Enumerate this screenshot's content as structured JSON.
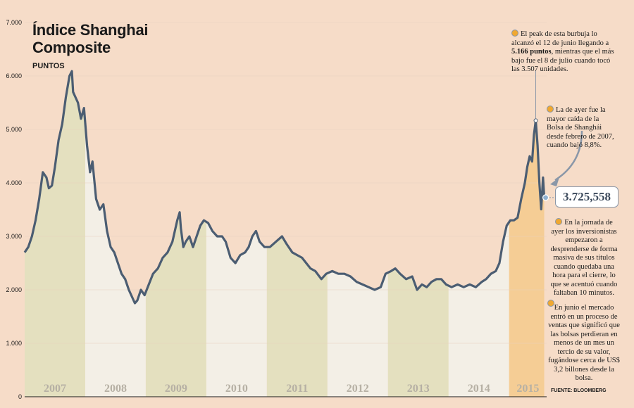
{
  "title_line1": "Índice Shanghai",
  "title_line2": "Composite",
  "units": "PUNTOS",
  "current_value": "3.725,558",
  "notes": {
    "peak": {
      "pre": "El peak de esta burbuja lo alcanzó el 12 de junio llegando a ",
      "bold": "5.166 puntos",
      "post": ", mientras que el más bajo fue el 8 de julio cuando tocó las 3.507 unidades."
    },
    "drop": "La de ayer fue la mayor caída de la Bolsa de Shanghái desde febrero de 2007, cuando bajó 8,8%.",
    "sell": "En la jornada de ayer los inversionistas empezaron a desprenderse de forma masiva de sus títulos cuando quedaba una hora para el cierre, lo que se acentuó cuando faltaban 10 minutos.",
    "june": "En junio el mercado entró en un proceso de ventas que significó que las bolsas perdieran en menos de un mes un tercio de su valor, fugándose cerca de US$ 3,2 billones desde la bolsa."
  },
  "source": "FUENTE: BLOOMBERG",
  "colors": {
    "background": "#f6dcc8",
    "band_olive": "#e4e0bf",
    "band_light": "#f3efe6",
    "band_2015": "#f5cd95",
    "line": "#4b5d72",
    "accent": "#f0a830"
  },
  "chart_data": {
    "type": "line",
    "title": "Índice Shanghai Composite",
    "ylabel": "PUNTOS",
    "ylim": [
      0,
      7000
    ],
    "yticks": [
      "0",
      "1.000",
      "2.000",
      "3.000",
      "4.000",
      "5.000",
      "6.000",
      "7.000"
    ],
    "categories": [
      "2007",
      "2008",
      "2009",
      "2010",
      "2011",
      "2012",
      "2013",
      "2014",
      "2015"
    ],
    "xlim": [
      2007.0,
      2015.62
    ],
    "series": [
      {
        "x": [
          2007.0,
          2007.06,
          2007.12,
          2007.18,
          2007.24,
          2007.3,
          2007.36,
          2007.4,
          2007.45,
          2007.5,
          2007.56,
          2007.62,
          2007.68,
          2007.74,
          2007.78,
          2007.8,
          2007.84,
          2007.88,
          2007.93,
          2007.98,
          2008.03,
          2008.08,
          2008.12,
          2008.18,
          2008.24,
          2008.3,
          2008.36,
          2008.42,
          2008.48,
          2008.54,
          2008.6,
          2008.66,
          2008.72,
          2008.78,
          2008.82,
          2008.86,
          2008.92,
          2008.98,
          2009.05,
          2009.12,
          2009.2,
          2009.28,
          2009.36,
          2009.44,
          2009.52,
          2009.56,
          2009.58,
          2009.62,
          2009.66,
          2009.72,
          2009.78,
          2009.84,
          2009.9,
          2009.96,
          2010.03,
          2010.1,
          2010.18,
          2010.26,
          2010.32,
          2010.4,
          2010.48,
          2010.56,
          2010.64,
          2010.7,
          2010.76,
          2010.82,
          2010.88,
          2010.96,
          2011.05,
          2011.15,
          2011.25,
          2011.33,
          2011.42,
          2011.5,
          2011.58,
          2011.65,
          2011.72,
          2011.8,
          2011.9,
          2011.98,
          2012.08,
          2012.18,
          2012.28,
          2012.38,
          2012.48,
          2012.58,
          2012.68,
          2012.78,
          2012.88,
          2012.96,
          2013.05,
          2013.12,
          2013.2,
          2013.3,
          2013.4,
          2013.48,
          2013.56,
          2013.64,
          2013.72,
          2013.8,
          2013.88,
          2013.96,
          2014.05,
          2014.15,
          2014.25,
          2014.35,
          2014.45,
          2014.55,
          2014.62,
          2014.7,
          2014.78,
          2014.84,
          2014.9,
          2014.96,
          2015.02,
          2015.08,
          2015.14,
          2015.2,
          2015.26,
          2015.3,
          2015.34,
          2015.38,
          2015.41,
          2015.44,
          2015.47,
          2015.5,
          2015.53,
          2015.56,
          2015.58
        ],
        "y": [
          2700,
          2800,
          3000,
          3300,
          3700,
          4200,
          4100,
          3900,
          3950,
          4300,
          4800,
          5100,
          5600,
          6000,
          6090,
          5700,
          5600,
          5500,
          5200,
          5400,
          4700,
          4200,
          4400,
          3700,
          3500,
          3600,
          3100,
          2800,
          2700,
          2500,
          2300,
          2200,
          2000,
          1850,
          1750,
          1800,
          2000,
          1900,
          2100,
          2300,
          2400,
          2600,
          2700,
          2900,
          3300,
          3450,
          3150,
          2800,
          2900,
          3000,
          2800,
          3000,
          3200,
          3300,
          3250,
          3100,
          3000,
          3000,
          2900,
          2600,
          2500,
          2650,
          2700,
          2800,
          3000,
          3100,
          2900,
          2800,
          2800,
          2900,
          3000,
          2850,
          2700,
          2650,
          2600,
          2500,
          2400,
          2350,
          2200,
          2300,
          2350,
          2300,
          2300,
          2250,
          2150,
          2100,
          2050,
          2000,
          2050,
          2300,
          2350,
          2400,
          2300,
          2200,
          2250,
          2000,
          2100,
          2050,
          2150,
          2200,
          2200,
          2100,
          2050,
          2100,
          2050,
          2100,
          2050,
          2150,
          2200,
          2300,
          2350,
          2500,
          2900,
          3200,
          3300,
          3300,
          3350,
          3700,
          4000,
          4300,
          4500,
          4400,
          4900,
          5166,
          4700,
          4000,
          3507,
          4100,
          3725
        ]
      }
    ]
  }
}
